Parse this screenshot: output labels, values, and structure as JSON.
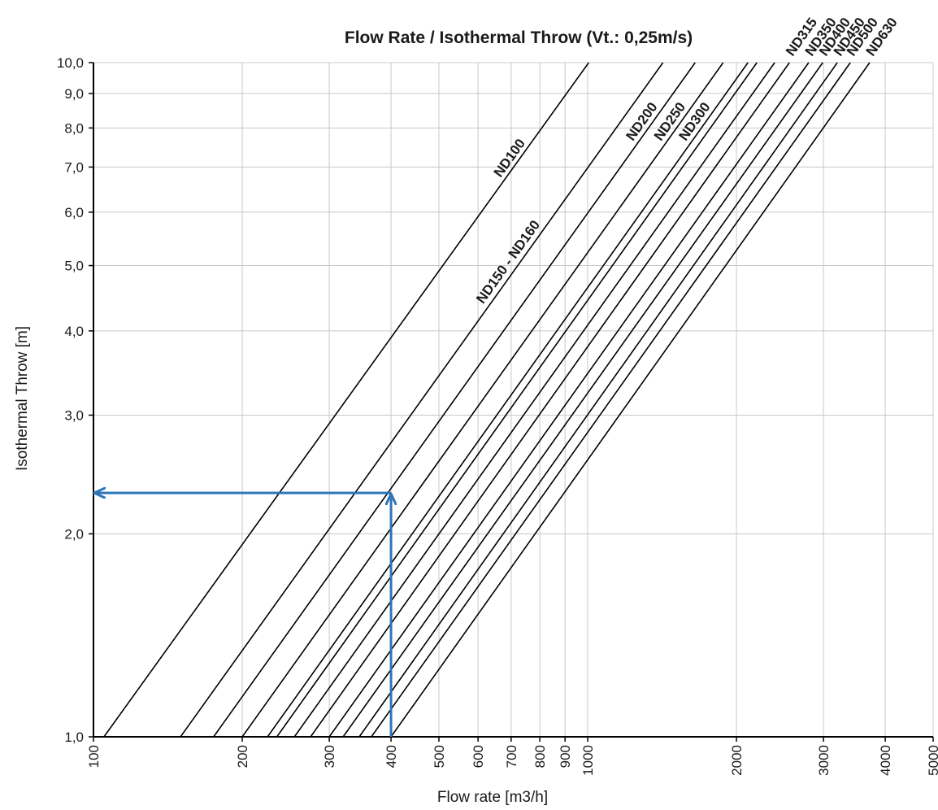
{
  "chart_data": {
    "type": "line",
    "title": "Flow Rate / Isothermal Throw (Vt.: 0,25m/s)",
    "xlabel": "Flow rate [m3/h]",
    "ylabel": "Isothermal Throw [m]",
    "x_scale": "log",
    "y_scale": "log",
    "xlim": [
      100,
      5000
    ],
    "ylim": [
      1,
      10
    ],
    "grid": true,
    "x_ticks": [
      100,
      200,
      300,
      400,
      500,
      600,
      700,
      800,
      900,
      1000,
      2000,
      3000,
      4000,
      5000
    ],
    "x_tick_labels": [
      "100",
      "200",
      "300",
      "400",
      "500",
      "600",
      "700",
      "800",
      "900",
      "1000",
      "2000",
      "3000",
      "4000",
      "5000"
    ],
    "y_ticks": [
      1,
      2,
      3,
      4,
      5,
      6,
      7,
      8,
      9,
      10
    ],
    "y_tick_labels": [
      "1,0",
      "2,0",
      "3,0",
      "4,0",
      "5,0",
      "6,0",
      "7,0",
      "8,0",
      "9,0",
      "10,0"
    ],
    "series": [
      {
        "name": "ND100",
        "x": [
          105,
          1005
        ],
        "y": [
          1,
          10
        ]
      },
      {
        "name": "ND150 - ND160",
        "x": [
          150,
          1420
        ],
        "y": [
          1,
          10
        ]
      },
      {
        "name": "ND200",
        "x": [
          175,
          1650
        ],
        "y": [
          1,
          10
        ]
      },
      {
        "name": "ND250",
        "x": [
          200,
          1880
        ],
        "y": [
          1,
          10
        ]
      },
      {
        "name": "ND300",
        "x": [
          225,
          2110
        ],
        "y": [
          1,
          10
        ]
      },
      {
        "name": "",
        "x": [
          235,
          2200
        ],
        "y": [
          1,
          10
        ]
      },
      {
        "name": "",
        "x": [
          255,
          2390
        ],
        "y": [
          1,
          10
        ]
      },
      {
        "name": "ND315",
        "x": [
          275,
          2560
        ],
        "y": [
          1,
          10
        ]
      },
      {
        "name": "ND350",
        "x": [
          300,
          2800
        ],
        "y": [
          1,
          10
        ]
      },
      {
        "name": "ND400",
        "x": [
          320,
          2990
        ],
        "y": [
          1,
          10
        ]
      },
      {
        "name": "ND450",
        "x": [
          345,
          3200
        ],
        "y": [
          1,
          10
        ]
      },
      {
        "name": "ND500",
        "x": [
          365,
          3400
        ],
        "y": [
          1,
          10
        ]
      },
      {
        "name": "ND630",
        "x": [
          400,
          3720
        ],
        "y": [
          1,
          10
        ]
      }
    ],
    "annotation": {
      "flow_rate": 400,
      "throw": 2.3,
      "color": "#2e75b6"
    }
  }
}
